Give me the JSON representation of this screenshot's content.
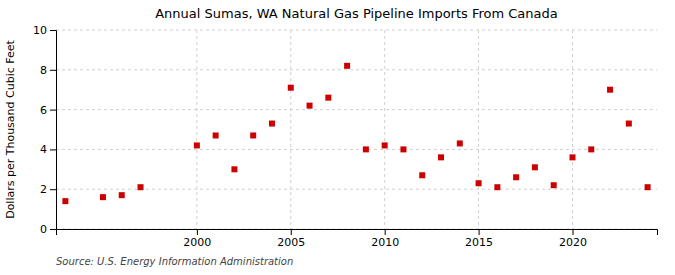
{
  "chart_data": {
    "type": "scatter",
    "title": "Annual Sumas, WA Natural Gas Pipeline Imports From Canada",
    "ylabel": "Dollars per Thousand Cubic Feet",
    "annotations": [
      "Source: U.S. Energy Information Administration"
    ],
    "x": [
      1993,
      1995,
      1996,
      1997,
      2000,
      2001,
      2002,
      2003,
      2004,
      2005,
      2006,
      2007,
      2008,
      2009,
      2010,
      2011,
      2012,
      2013,
      2014,
      2015,
      2016,
      2017,
      2018,
      2019,
      2020,
      2021,
      2022,
      2023,
      2024
    ],
    "values": [
      1.4,
      1.6,
      1.7,
      2.1,
      4.2,
      4.7,
      3.0,
      4.7,
      5.3,
      7.1,
      6.2,
      6.6,
      8.2,
      4.0,
      4.2,
      4.0,
      2.7,
      3.6,
      4.3,
      2.3,
      2.1,
      2.6,
      3.1,
      2.2,
      3.6,
      4.0,
      7.0,
      5.3,
      2.1
    ],
    "color": "#cc0000",
    "marker": "square",
    "xlim": [
      1992.5,
      2024.5
    ],
    "xticks": [
      2000,
      2005,
      2010,
      2015,
      2020
    ],
    "ylim": [
      0,
      10
    ],
    "yticks": [
      0,
      2,
      4,
      6,
      8,
      10
    ],
    "grid": true
  }
}
